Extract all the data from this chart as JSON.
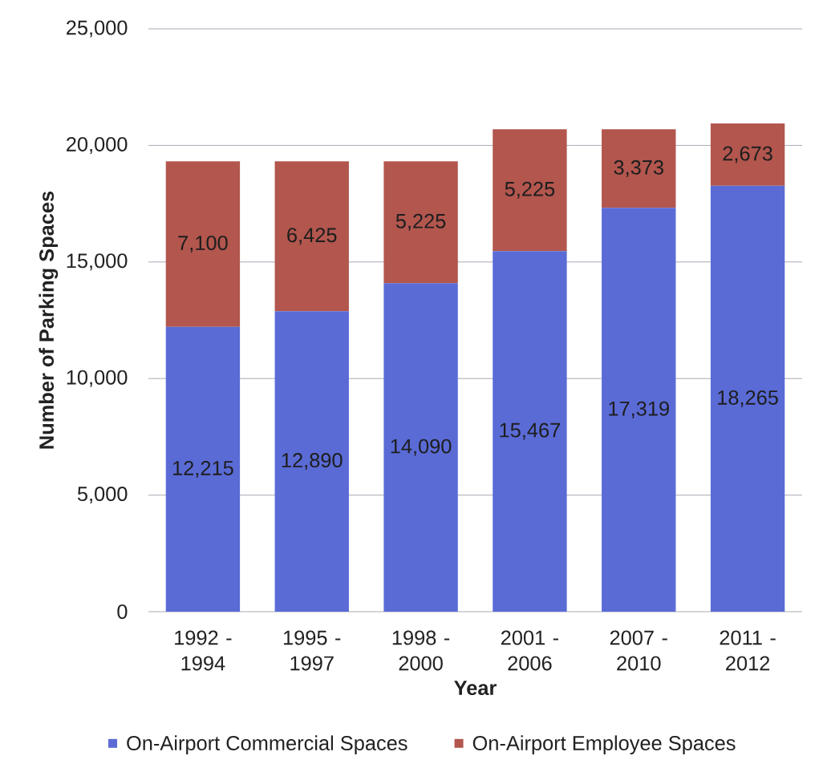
{
  "chart_data": {
    "type": "bar",
    "stacked": true,
    "xlabel": "Year",
    "ylabel": "Number of Parking Spaces",
    "categories": [
      "1992 - 1994",
      "1995 - 1997",
      "1998 - 2000",
      "2001 - 2006",
      "2007 - 2010",
      "2011 - 2012"
    ],
    "series": [
      {
        "name": "On-Airport Commercial Spaces",
        "color": "#5a6bd6",
        "values": [
          12215,
          12890,
          14090,
          15467,
          17319,
          18265
        ],
        "value_labels": [
          "12,215",
          "12,890",
          "14,090",
          "15,467",
          "17,319",
          "18,265"
        ]
      },
      {
        "name": "On-Airport Employee Spaces",
        "color": "#b2564e",
        "values": [
          7100,
          6425,
          5225,
          5225,
          3373,
          2673
        ],
        "value_labels": [
          "7,100",
          "6,425",
          "5,225",
          "5,225",
          "3,373",
          "2,673"
        ]
      }
    ],
    "ylim": [
      0,
      25000
    ],
    "yticks": [
      0,
      {
        "value": 5000,
        "label": "5,000"
      },
      {
        "value": 10000,
        "label": "10,000"
      },
      {
        "value": 15000,
        "label": "15,000"
      },
      {
        "value": 20000,
        "label": "20,000"
      },
      {
        "value": 25000,
        "label": "25,000"
      }
    ],
    "grid": "y",
    "legend": "bottom"
  }
}
